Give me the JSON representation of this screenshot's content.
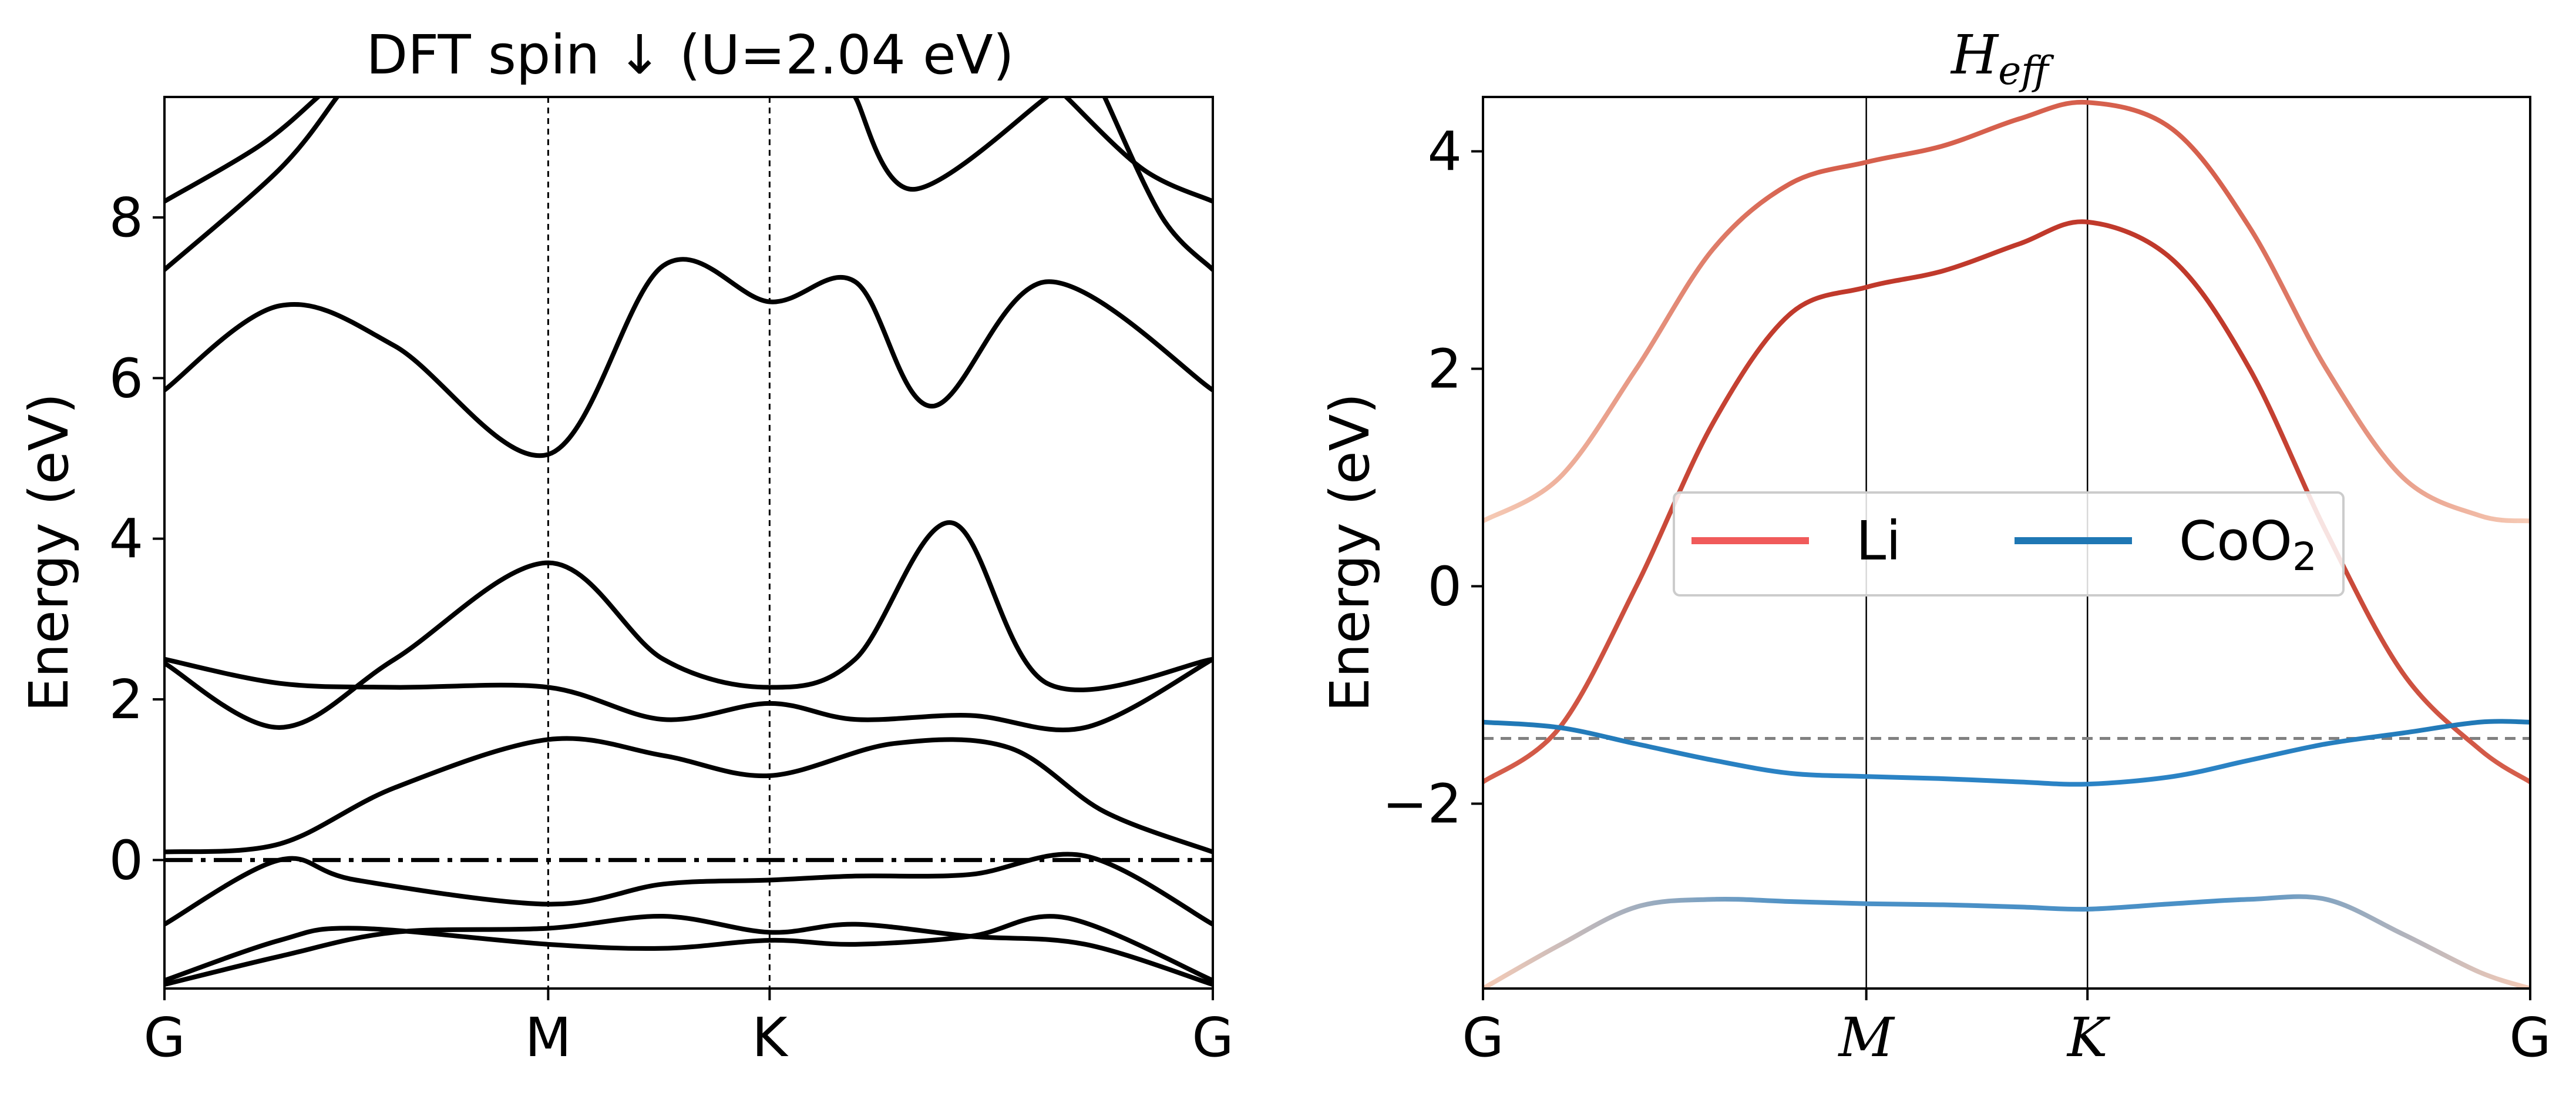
{
  "chart_data": [
    {
      "type": "line",
      "title": "DFT spin  ↓  (U=2.04 eV)",
      "ylabel": "Energy (eV)",
      "xlabel": "",
      "x_ticks": [
        {
          "label": "G",
          "x": 0
        },
        {
          "label": "M",
          "x": 1.0
        },
        {
          "label": "K",
          "x": 1.577
        },
        {
          "label": "G",
          "x": 2.732
        }
      ],
      "xlim": [
        0,
        2.732
      ],
      "ylim": [
        -1.6,
        9.5
      ],
      "y_ticks": [
        0,
        2,
        4,
        6,
        8
      ],
      "fermi_line": {
        "y": 0,
        "style": "dash-dot"
      },
      "vertical_lines": [
        1.0,
        1.577
      ],
      "line_color": "#000000",
      "series": [
        {
          "points": [
            [
              0,
              -1.55
            ],
            [
              0.3,
              -1.2
            ],
            [
              0.6,
              -0.9
            ],
            [
              1.0,
              -0.85
            ],
            [
              1.3,
              -0.7
            ],
            [
              1.577,
              -0.9
            ],
            [
              1.8,
              -0.8
            ],
            [
              2.1,
              -0.95
            ],
            [
              2.4,
              -1.05
            ],
            [
              2.732,
              -1.55
            ]
          ]
        },
        {
          "points": [
            [
              0,
              -1.5
            ],
            [
              0.3,
              -1.0
            ],
            [
              0.5,
              -0.85
            ],
            [
              1.0,
              -1.05
            ],
            [
              1.3,
              -1.1
            ],
            [
              1.577,
              -1.0
            ],
            [
              1.8,
              -1.05
            ],
            [
              2.1,
              -0.95
            ],
            [
              2.35,
              -0.72
            ],
            [
              2.732,
              -1.5
            ]
          ]
        },
        {
          "points": [
            [
              0,
              -0.8
            ],
            [
              0.3,
              0.0
            ],
            [
              0.5,
              -0.25
            ],
            [
              1.0,
              -0.55
            ],
            [
              1.3,
              -0.3
            ],
            [
              1.577,
              -0.25
            ],
            [
              1.8,
              -0.2
            ],
            [
              2.1,
              -0.18
            ],
            [
              2.4,
              0.05
            ],
            [
              2.732,
              -0.8
            ]
          ]
        },
        {
          "points": [
            [
              0,
              0.1
            ],
            [
              0.3,
              0.2
            ],
            [
              0.6,
              0.9
            ],
            [
              1.0,
              1.5
            ],
            [
              1.3,
              1.3
            ],
            [
              1.577,
              1.05
            ],
            [
              1.9,
              1.45
            ],
            [
              2.2,
              1.4
            ],
            [
              2.45,
              0.6
            ],
            [
              2.732,
              0.1
            ]
          ]
        },
        {
          "points": [
            [
              0,
              2.45
            ],
            [
              0.3,
              1.65
            ],
            [
              0.6,
              2.5
            ],
            [
              1.0,
              3.7
            ],
            [
              1.3,
              2.5
            ],
            [
              1.577,
              2.15
            ],
            [
              1.8,
              2.5
            ],
            [
              2.05,
              4.2
            ],
            [
              2.3,
              2.2
            ],
            [
              2.732,
              2.5
            ]
          ]
        },
        {
          "points": [
            [
              0,
              2.5
            ],
            [
              0.3,
              2.2
            ],
            [
              0.6,
              2.15
            ],
            [
              1.0,
              2.15
            ],
            [
              1.3,
              1.75
            ],
            [
              1.577,
              1.95
            ],
            [
              1.8,
              1.75
            ],
            [
              2.1,
              1.8
            ],
            [
              2.4,
              1.65
            ],
            [
              2.732,
              2.5
            ]
          ]
        },
        {
          "points": [
            [
              0,
              5.85
            ],
            [
              0.3,
              6.9
            ],
            [
              0.6,
              6.4
            ],
            [
              1.0,
              5.05
            ],
            [
              1.3,
              7.4
            ],
            [
              1.577,
              6.95
            ],
            [
              1.8,
              7.2
            ],
            [
              2.0,
              5.65
            ],
            [
              2.3,
              7.2
            ],
            [
              2.732,
              5.85
            ]
          ]
        },
        {
          "points": [
            [
              0,
              7.35
            ],
            [
              0.3,
              8.6
            ],
            [
              0.45,
              9.5
            ]
          ]
        },
        {
          "points": [
            [
              0,
              8.2
            ],
            [
              0.25,
              8.9
            ],
            [
              0.4,
              9.5
            ]
          ]
        },
        {
          "points": [
            [
              1.8,
              9.5
            ],
            [
              1.95,
              8.35
            ],
            [
              2.3,
              9.5
            ]
          ]
        },
        {
          "points": [
            [
              2.35,
              9.5
            ],
            [
              2.55,
              8.6
            ],
            [
              2.732,
              8.2
            ]
          ]
        },
        {
          "points": [
            [
              2.45,
              9.5
            ],
            [
              2.6,
              8.0
            ],
            [
              2.732,
              7.35
            ]
          ]
        }
      ]
    },
    {
      "type": "line",
      "title_base": "H",
      "title_sub": "eff",
      "ylabel": "Energy (eV)",
      "xlabel": "",
      "x_ticks": [
        {
          "label": "G",
          "x": 0
        },
        {
          "label": "M",
          "x": 1.0
        },
        {
          "label": "K",
          "x": 1.577
        },
        {
          "label": "G",
          "x": 2.732
        }
      ],
      "xlim": [
        0,
        2.732
      ],
      "ylim": [
        -3.7,
        4.5
      ],
      "y_ticks": [
        -2,
        0,
        2,
        4
      ],
      "y_tick_labels": [
        "−2",
        "0",
        "2",
        "4"
      ],
      "fermi_line": {
        "y": -1.4,
        "style": "dashed",
        "color": "#808080"
      },
      "vertical_lines": [
        1.0,
        1.577
      ],
      "legend": {
        "placement": "center",
        "entries": [
          {
            "label": "Li",
            "color": "#f05a5a"
          },
          {
            "label": "CoO",
            "sub": "2",
            "color": "#1f77b4"
          }
        ]
      },
      "series": [
        {
          "name": "Li",
          "color_start": "#f6cbb6",
          "color_mid": "#d6604d",
          "points": [
            [
              0,
              0.6
            ],
            [
              0.2,
              1.0
            ],
            [
              0.4,
              2.0
            ],
            [
              0.6,
              3.1
            ],
            [
              0.8,
              3.7
            ],
            [
              1.0,
              3.9
            ],
            [
              1.2,
              4.05
            ],
            [
              1.4,
              4.3
            ],
            [
              1.577,
              4.45
            ],
            [
              1.8,
              4.2
            ],
            [
              2.0,
              3.3
            ],
            [
              2.2,
              2.0
            ],
            [
              2.4,
              1.0
            ],
            [
              2.6,
              0.65
            ],
            [
              2.732,
              0.6
            ]
          ]
        },
        {
          "name": "Li",
          "color_start": "#d6604d",
          "color_mid": "#c0392b",
          "points": [
            [
              0,
              -1.8
            ],
            [
              0.2,
              -1.3
            ],
            [
              0.4,
              0.0
            ],
            [
              0.6,
              1.5
            ],
            [
              0.8,
              2.5
            ],
            [
              1.0,
              2.75
            ],
            [
              1.2,
              2.9
            ],
            [
              1.4,
              3.15
            ],
            [
              1.577,
              3.35
            ],
            [
              1.8,
              3.0
            ],
            [
              2.0,
              2.0
            ],
            [
              2.2,
              0.5
            ],
            [
              2.4,
              -0.8
            ],
            [
              2.6,
              -1.5
            ],
            [
              2.732,
              -1.8
            ]
          ]
        },
        {
          "name": "CoO2",
          "color_start": "#1f77b4",
          "color_mid": "#2b83c5",
          "points": [
            [
              0,
              -1.25
            ],
            [
              0.2,
              -1.3
            ],
            [
              0.4,
              -1.45
            ],
            [
              0.6,
              -1.6
            ],
            [
              0.8,
              -1.72
            ],
            [
              1.0,
              -1.75
            ],
            [
              1.2,
              -1.77
            ],
            [
              1.4,
              -1.8
            ],
            [
              1.577,
              -1.82
            ],
            [
              1.8,
              -1.75
            ],
            [
              2.0,
              -1.6
            ],
            [
              2.2,
              -1.45
            ],
            [
              2.4,
              -1.35
            ],
            [
              2.6,
              -1.25
            ],
            [
              2.732,
              -1.25
            ]
          ]
        },
        {
          "name": "CoO2",
          "color_start": "#f6cbb6",
          "color_mid": "#4a90c6",
          "points": [
            [
              0,
              -3.7
            ],
            [
              0.2,
              -3.3
            ],
            [
              0.4,
              -2.95
            ],
            [
              0.6,
              -2.88
            ],
            [
              0.8,
              -2.9
            ],
            [
              1.0,
              -2.92
            ],
            [
              1.2,
              -2.93
            ],
            [
              1.4,
              -2.95
            ],
            [
              1.577,
              -2.97
            ],
            [
              1.8,
              -2.92
            ],
            [
              2.0,
              -2.88
            ],
            [
              2.2,
              -2.88
            ],
            [
              2.4,
              -3.2
            ],
            [
              2.6,
              -3.55
            ],
            [
              2.732,
              -3.7
            ]
          ]
        }
      ]
    }
  ]
}
